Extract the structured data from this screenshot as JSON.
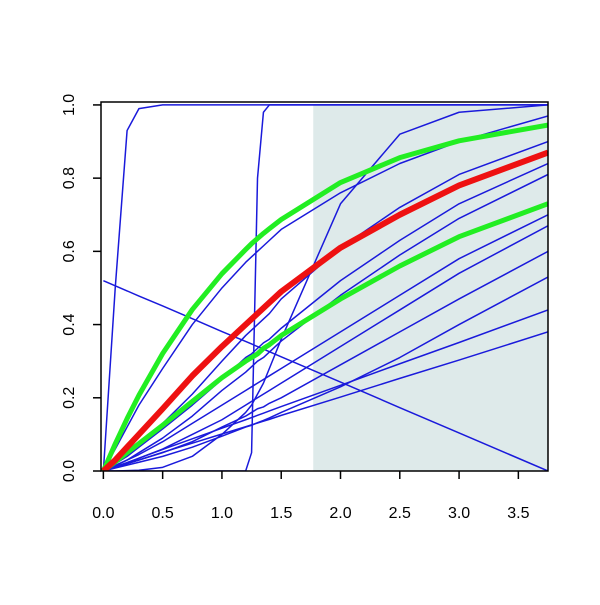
{
  "chart_data": {
    "type": "line",
    "x": [
      0,
      0.1,
      0.2,
      0.3,
      0.5,
      0.75,
      1.0,
      1.2,
      1.25,
      1.3,
      1.35,
      1.4,
      1.5,
      2.0,
      2.5,
      3.0,
      3.75
    ],
    "shaded_region": {
      "x": [
        1.77,
        3.75
      ],
      "y": [
        0,
        1
      ],
      "color": "#deeaea"
    },
    "series": [
      {
        "color": "#1a1adb",
        "line_width": 1.5,
        "values": [
          0,
          0.5,
          0.93,
          0.99,
          1,
          1,
          1,
          1,
          1,
          1,
          1,
          1,
          1,
          1,
          1,
          1,
          1
        ]
      },
      {
        "color": "#1a1adb",
        "line_width": 1.5,
        "values": [
          0,
          0,
          0,
          0,
          0,
          0,
          0,
          0,
          0.05,
          0.8,
          0.98,
          1,
          1,
          1,
          1,
          1,
          1
        ]
      },
      {
        "color": "#1a1adb",
        "line_width": 1.5,
        "values": [
          0,
          0,
          0.001,
          0.002,
          0.01,
          0.04,
          0.1,
          0.16,
          0.18,
          0.21,
          0.24,
          0.28,
          0.36,
          0.73,
          0.92,
          0.98,
          1
        ]
      },
      {
        "color": "#1a1adb",
        "line_width": 1.5,
        "values": [
          0.52,
          0.506,
          0.492,
          0.478,
          0.451,
          0.416,
          0.381,
          0.354,
          0.347,
          0.34,
          0.333,
          0.326,
          0.312,
          0.243,
          0.173,
          0.104,
          0
        ]
      },
      {
        "color": "#1a1adb",
        "line_width": 1.5,
        "values": [
          0,
          0.06,
          0.12,
          0.18,
          0.28,
          0.4,
          0.5,
          0.57,
          0.585,
          0.6,
          0.615,
          0.63,
          0.66,
          0.76,
          0.84,
          0.9,
          0.97
        ]
      },
      {
        "color": "#1a1adb",
        "line_width": 1.5,
        "values": [
          0,
          0.02,
          0.045,
          0.07,
          0.13,
          0.21,
          0.3,
          0.37,
          0.385,
          0.4,
          0.415,
          0.43,
          0.47,
          0.61,
          0.72,
          0.81,
          0.9
        ]
      },
      {
        "color": "#1a1adb",
        "line_width": 1.5,
        "values": [
          0,
          0.02,
          0.04,
          0.065,
          0.115,
          0.18,
          0.25,
          0.31,
          0.32,
          0.335,
          0.35,
          0.36,
          0.39,
          0.52,
          0.63,
          0.73,
          0.84
        ]
      },
      {
        "color": "#1a1adb",
        "line_width": 1.5,
        "values": [
          0,
          0.015,
          0.03,
          0.05,
          0.09,
          0.15,
          0.22,
          0.27,
          0.285,
          0.3,
          0.31,
          0.325,
          0.355,
          0.48,
          0.59,
          0.69,
          0.81
        ]
      },
      {
        "color": "#1a1adb",
        "line_width": 1.5,
        "values": [
          0,
          0.015,
          0.03,
          0.045,
          0.08,
          0.13,
          0.18,
          0.22,
          0.23,
          0.24,
          0.25,
          0.26,
          0.28,
          0.38,
          0.48,
          0.58,
          0.7
        ]
      },
      {
        "color": "#1a1adb",
        "line_width": 1.5,
        "values": [
          0,
          0.01,
          0.02,
          0.035,
          0.06,
          0.1,
          0.14,
          0.18,
          0.19,
          0.2,
          0.21,
          0.22,
          0.24,
          0.34,
          0.44,
          0.54,
          0.67
        ]
      },
      {
        "color": "#1a1adb",
        "line_width": 1.5,
        "values": [
          0,
          0.01,
          0.02,
          0.03,
          0.05,
          0.08,
          0.12,
          0.15,
          0.16,
          0.17,
          0.175,
          0.185,
          0.2,
          0.29,
          0.38,
          0.47,
          0.6
        ]
      },
      {
        "color": "#1a1adb",
        "line_width": 1.5,
        "values": [
          0,
          0.008,
          0.016,
          0.024,
          0.04,
          0.065,
          0.095,
          0.12,
          0.125,
          0.132,
          0.138,
          0.145,
          0.16,
          0.23,
          0.31,
          0.4,
          0.53
        ]
      },
      {
        "color": "#1a1adb",
        "line_width": 1.5,
        "values": [
          0,
          0.012,
          0.023,
          0.035,
          0.059,
          0.088,
          0.117,
          0.14,
          0.146,
          0.152,
          0.158,
          0.164,
          0.176,
          0.234,
          0.293,
          0.351,
          0.44
        ]
      },
      {
        "color": "#1a1adb",
        "line_width": 1.5,
        "values": [
          0,
          0.01,
          0.02,
          0.03,
          0.051,
          0.076,
          0.101,
          0.121,
          0.126,
          0.131,
          0.136,
          0.141,
          0.152,
          0.202,
          0.253,
          0.303,
          0.38
        ]
      },
      {
        "color": "#22ee22",
        "line_width": 5,
        "values": [
          0,
          0.074,
          0.143,
          0.207,
          0.321,
          0.441,
          0.539,
          0.605,
          0.621,
          0.635,
          0.649,
          0.662,
          0.687,
          0.788,
          0.856,
          0.902,
          0.945
        ]
      },
      {
        "color": "#22ee22",
        "line_width": 5,
        "values": [
          0,
          0.025,
          0.05,
          0.075,
          0.125,
          0.19,
          0.255,
          0.3,
          0.31,
          0.32,
          0.335,
          0.345,
          0.37,
          0.47,
          0.56,
          0.64,
          0.73
        ]
      },
      {
        "color": "#ee1111",
        "line_width": 6,
        "values": [
          0,
          0.03,
          0.065,
          0.1,
          0.17,
          0.26,
          0.34,
          0.4,
          0.415,
          0.43,
          0.445,
          0.46,
          0.49,
          0.61,
          0.7,
          0.78,
          0.87
        ]
      }
    ],
    "xlim": [
      -0.02,
      3.75
    ],
    "ylim": [
      0,
      1.008
    ],
    "xticks": [
      {
        "value": 0,
        "label": "0.0"
      },
      0.5,
      {
        "value": 1,
        "label": "1.0"
      },
      1.5,
      {
        "value": 2,
        "label": "2.0"
      },
      2.5,
      {
        "value": 3,
        "label": "3.0"
      },
      3.5
    ],
    "yticks": [
      {
        "value": 0,
        "label": "0.0"
      },
      0.2,
      0.4,
      0.6,
      0.8,
      {
        "value": 1,
        "label": "1.0"
      }
    ]
  }
}
